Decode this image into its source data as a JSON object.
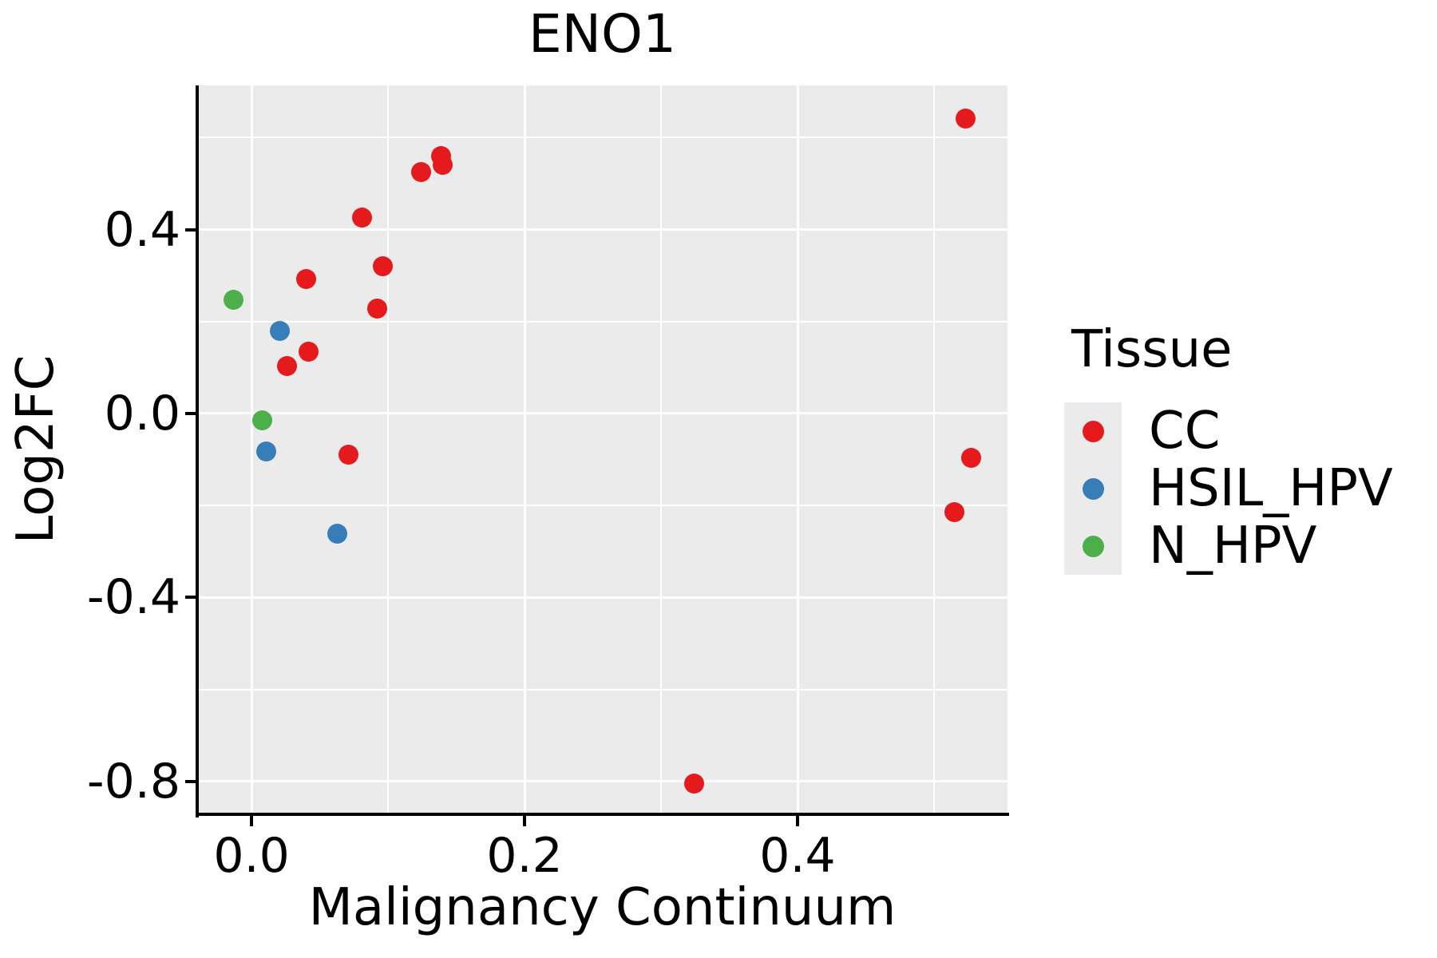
{
  "chart_data": {
    "type": "scatter",
    "title": "ENO1",
    "xlabel": "Malignancy Continuum",
    "ylabel": "Log2FC",
    "xlim": [
      -0.0398,
      0.5538
    ],
    "ylim": [
      -0.8715,
      0.7135
    ],
    "x_major_ticks": [
      {
        "value": 0.0,
        "label": "0.0"
      },
      {
        "value": 0.2,
        "label": "0.2"
      },
      {
        "value": 0.4,
        "label": "0.4"
      }
    ],
    "x_minor_ticks": [
      0.1,
      0.3,
      0.5
    ],
    "y_major_ticks": [
      {
        "value": 0.4,
        "label": "0.4"
      },
      {
        "value": 0.0,
        "label": "0.0"
      },
      {
        "value": -0.4,
        "label": "-0.4"
      },
      {
        "value": -0.8,
        "label": "-0.8"
      }
    ],
    "y_minor_ticks": [
      0.6,
      0.2,
      -0.2,
      -0.6
    ],
    "grid": true,
    "panel_background": "#EBEBEB",
    "grid_color": "#FFFFFF",
    "axis_color": "#000000",
    "legend": {
      "title": "Tissue",
      "position": "right"
    },
    "series": [
      {
        "name": "CC",
        "color": "#E41A1C",
        "points": [
          [
            0.124,
            0.526
          ],
          [
            0.139,
            0.559
          ],
          [
            0.14,
            0.54
          ],
          [
            0.081,
            0.427
          ],
          [
            0.096,
            0.321
          ],
          [
            0.04,
            0.293
          ],
          [
            0.092,
            0.229
          ],
          [
            0.042,
            0.135
          ],
          [
            0.026,
            0.104
          ],
          [
            0.071,
            -0.09
          ],
          [
            0.527,
            -0.097
          ],
          [
            0.515,
            -0.215
          ],
          [
            0.324,
            -0.804
          ],
          [
            0.523,
            0.641
          ]
        ]
      },
      {
        "name": "HSIL_HPV",
        "color": "#377EB8",
        "points": [
          [
            0.021,
            0.179
          ],
          [
            0.011,
            -0.082
          ],
          [
            0.063,
            -0.262
          ]
        ]
      },
      {
        "name": "N_HPV",
        "color": "#4DAF4A",
        "points": [
          [
            -0.013,
            0.248
          ],
          [
            0.008,
            -0.014
          ]
        ]
      }
    ]
  }
}
